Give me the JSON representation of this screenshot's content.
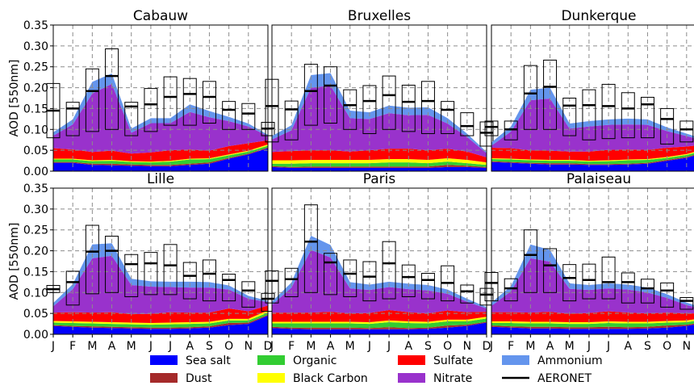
{
  "chart_data": {
    "type": "area",
    "layout": "2x3 grid of stacked area panels with AERONET box overlays",
    "ylabel": "AOD [550nm]",
    "ylim": [
      0,
      0.35
    ],
    "yticks": [
      0.0,
      0.05,
      0.1,
      0.15,
      0.2,
      0.25,
      0.3,
      0.35
    ],
    "months": [
      "J",
      "F",
      "M",
      "A",
      "M",
      "J",
      "J",
      "A",
      "S",
      "O",
      "N",
      "D"
    ],
    "grid": true,
    "legend_position": "bottom",
    "components": [
      {
        "name": "Sea salt",
        "color": "#0000ff"
      },
      {
        "name": "Dust",
        "color": "#a52a2a"
      },
      {
        "name": "Organic",
        "color": "#32cd32"
      },
      {
        "name": "Black Carbon",
        "color": "#ffff00"
      },
      {
        "name": "Sulfate",
        "color": "#ff0000"
      },
      {
        "name": "Nitrate",
        "color": "#9932cc"
      },
      {
        "name": "Ammonium",
        "color": "#6495ed"
      },
      {
        "name": "AERONET",
        "color": "#000000",
        "marker": "line"
      }
    ],
    "panels": [
      {
        "title": "Cabauw",
        "stacks": {
          "Sea salt": [
            0.02,
            0.02,
            0.015,
            0.014,
            0.013,
            0.012,
            0.012,
            0.015,
            0.018,
            0.03,
            0.04,
            0.055
          ],
          "Dust": [
            0.002,
            0.002,
            0.003,
            0.004,
            0.003,
            0.003,
            0.003,
            0.003,
            0.003,
            0.002,
            0.002,
            0.002
          ],
          "Organic": [
            0.006,
            0.006,
            0.006,
            0.007,
            0.006,
            0.006,
            0.008,
            0.01,
            0.008,
            0.006,
            0.005,
            0.004
          ],
          "Black Carbon": [
            0.002,
            0.002,
            0.002,
            0.002,
            0.002,
            0.002,
            0.002,
            0.002,
            0.002,
            0.002,
            0.002,
            0.003
          ],
          "Sulfate": [
            0.025,
            0.022,
            0.02,
            0.022,
            0.018,
            0.022,
            0.025,
            0.022,
            0.018,
            0.02,
            0.018,
            0.01
          ],
          "Nitrate": [
            0.03,
            0.06,
            0.14,
            0.16,
            0.05,
            0.07,
            0.065,
            0.09,
            0.08,
            0.06,
            0.04,
            0.01
          ],
          "Ammonium": [
            0.008,
            0.012,
            0.028,
            0.025,
            0.01,
            0.012,
            0.012,
            0.018,
            0.015,
            0.01,
            0.007,
            0.003
          ]
        },
        "aeronet": {
          "median": [
            0.145,
            0.15,
            0.192,
            0.228,
            0.155,
            0.16,
            0.178,
            0.185,
            0.178,
            0.147,
            0.138,
            0.102
          ],
          "q_low": [
            0.08,
            0.085,
            0.095,
            0.1,
            0.085,
            0.095,
            0.11,
            0.11,
            0.115,
            0.1,
            0.1,
            0.085
          ],
          "q_high": [
            0.21,
            0.165,
            0.245,
            0.293,
            0.165,
            0.198,
            0.226,
            0.222,
            0.215,
            0.167,
            0.162,
            0.117
          ]
        }
      },
      {
        "title": "Bruxelles",
        "stacks": {
          "Sea salt": [
            0.01,
            0.008,
            0.008,
            0.008,
            0.008,
            0.008,
            0.008,
            0.008,
            0.008,
            0.01,
            0.01,
            0.008
          ],
          "Dust": [
            0.002,
            0.002,
            0.003,
            0.003,
            0.003,
            0.003,
            0.003,
            0.003,
            0.003,
            0.005,
            0.003,
            0.002
          ],
          "Organic": [
            0.006,
            0.008,
            0.008,
            0.008,
            0.008,
            0.008,
            0.01,
            0.01,
            0.008,
            0.008,
            0.006,
            0.005
          ],
          "Black Carbon": [
            0.008,
            0.008,
            0.008,
            0.008,
            0.008,
            0.008,
            0.008,
            0.008,
            0.008,
            0.008,
            0.008,
            0.006
          ],
          "Sulfate": [
            0.02,
            0.022,
            0.023,
            0.023,
            0.02,
            0.023,
            0.025,
            0.025,
            0.023,
            0.023,
            0.02,
            0.012
          ],
          "Nitrate": [
            0.03,
            0.05,
            0.15,
            0.155,
            0.08,
            0.075,
            0.085,
            0.08,
            0.085,
            0.06,
            0.035,
            0.01
          ],
          "Ammonium": [
            0.008,
            0.012,
            0.03,
            0.03,
            0.018,
            0.016,
            0.018,
            0.018,
            0.018,
            0.013,
            0.008,
            0.003
          ]
        },
        "aeronet": {
          "median": [
            0.156,
            0.148,
            0.192,
            0.205,
            0.158,
            0.168,
            0.182,
            0.166,
            0.168,
            0.147,
            0.108,
            0.092
          ],
          "q_low": [
            0.07,
            0.075,
            0.11,
            0.115,
            0.1,
            0.09,
            0.1,
            0.095,
            0.09,
            0.09,
            0.085,
            0.06
          ],
          "q_high": [
            0.22,
            0.168,
            0.256,
            0.25,
            0.195,
            0.205,
            0.228,
            0.206,
            0.215,
            0.167,
            0.14,
            0.118
          ]
        }
      },
      {
        "title": "Dunkerque",
        "stacks": {
          "Sea salt": [
            0.022,
            0.02,
            0.018,
            0.016,
            0.016,
            0.015,
            0.015,
            0.016,
            0.018,
            0.025,
            0.032,
            0.045
          ],
          "Dust": [
            0.002,
            0.002,
            0.002,
            0.003,
            0.003,
            0.002,
            0.002,
            0.002,
            0.002,
            0.002,
            0.002,
            0.002
          ],
          "Organic": [
            0.005,
            0.006,
            0.006,
            0.006,
            0.006,
            0.006,
            0.007,
            0.008,
            0.007,
            0.005,
            0.005,
            0.004
          ],
          "Black Carbon": [
            0.002,
            0.002,
            0.002,
            0.002,
            0.002,
            0.002,
            0.002,
            0.002,
            0.002,
            0.002,
            0.002,
            0.003
          ],
          "Sulfate": [
            0.025,
            0.025,
            0.022,
            0.022,
            0.02,
            0.022,
            0.025,
            0.024,
            0.022,
            0.022,
            0.018,
            0.01
          ],
          "Nitrate": [
            0.005,
            0.04,
            0.12,
            0.125,
            0.055,
            0.06,
            0.06,
            0.06,
            0.06,
            0.04,
            0.025,
            0.008
          ],
          "Ammonium": [
            0.008,
            0.012,
            0.025,
            0.026,
            0.012,
            0.013,
            0.013,
            0.014,
            0.013,
            0.009,
            0.006,
            0.003
          ]
        },
        "aeronet": {
          "median": [
            0.106,
            0.1,
            0.186,
            0.202,
            0.157,
            0.158,
            0.156,
            0.15,
            0.16,
            0.125,
            0.1,
            0.09
          ],
          "q_low": [
            0.085,
            0.075,
            0.1,
            0.1,
            0.085,
            0.075,
            0.078,
            0.08,
            0.08,
            0.065,
            0.07,
            0.06
          ],
          "q_high": [
            0.12,
            0.12,
            0.253,
            0.266,
            0.175,
            0.195,
            0.208,
            0.188,
            0.177,
            0.15,
            0.12,
            0.095
          ]
        }
      },
      {
        "title": "Lille",
        "stacks": {
          "Sea salt": [
            0.02,
            0.018,
            0.016,
            0.015,
            0.014,
            0.013,
            0.013,
            0.014,
            0.016,
            0.022,
            0.025,
            0.045
          ],
          "Dust": [
            0.002,
            0.002,
            0.003,
            0.003,
            0.003,
            0.003,
            0.003,
            0.003,
            0.003,
            0.005,
            0.003,
            0.002
          ],
          "Organic": [
            0.006,
            0.007,
            0.007,
            0.007,
            0.007,
            0.007,
            0.008,
            0.008,
            0.007,
            0.006,
            0.005,
            0.005
          ],
          "Black Carbon": [
            0.004,
            0.004,
            0.004,
            0.004,
            0.004,
            0.004,
            0.004,
            0.004,
            0.004,
            0.004,
            0.004,
            0.005
          ],
          "Sulfate": [
            0.02,
            0.022,
            0.022,
            0.024,
            0.02,
            0.022,
            0.025,
            0.023,
            0.022,
            0.025,
            0.018,
            0.012
          ],
          "Nitrate": [
            0.015,
            0.055,
            0.13,
            0.135,
            0.07,
            0.065,
            0.06,
            0.06,
            0.06,
            0.045,
            0.03,
            0.008
          ],
          "Ammonium": [
            0.008,
            0.012,
            0.033,
            0.03,
            0.015,
            0.013,
            0.013,
            0.014,
            0.013,
            0.01,
            0.007,
            0.003
          ]
        },
        "aeronet": {
          "median": [
            0.108,
            0.125,
            0.198,
            0.2,
            0.168,
            0.17,
            0.165,
            0.14,
            0.145,
            0.13,
            0.105,
            0.085
          ],
          "q_low": [
            0.1,
            0.07,
            0.097,
            0.1,
            0.09,
            0.095,
            0.095,
            0.085,
            0.08,
            0.08,
            0.065,
            0.055
          ],
          "q_high": [
            0.117,
            0.151,
            0.261,
            0.235,
            0.191,
            0.196,
            0.215,
            0.172,
            0.178,
            0.144,
            0.126,
            0.098
          ]
        }
      },
      {
        "title": "Paris",
        "stacks": {
          "Sea salt": [
            0.015,
            0.013,
            0.012,
            0.012,
            0.012,
            0.012,
            0.012,
            0.012,
            0.013,
            0.016,
            0.02,
            0.028
          ],
          "Dust": [
            0.003,
            0.003,
            0.004,
            0.004,
            0.004,
            0.003,
            0.005,
            0.003,
            0.003,
            0.005,
            0.003,
            0.002
          ],
          "Organic": [
            0.008,
            0.01,
            0.01,
            0.01,
            0.01,
            0.01,
            0.012,
            0.012,
            0.01,
            0.01,
            0.008,
            0.008
          ],
          "Black Carbon": [
            0.004,
            0.004,
            0.004,
            0.004,
            0.004,
            0.004,
            0.004,
            0.004,
            0.004,
            0.004,
            0.004,
            0.004
          ],
          "Sulfate": [
            0.022,
            0.022,
            0.022,
            0.024,
            0.02,
            0.022,
            0.025,
            0.022,
            0.02,
            0.022,
            0.018,
            0.012
          ],
          "Nitrate": [
            0.018,
            0.06,
            0.15,
            0.13,
            0.06,
            0.055,
            0.055,
            0.055,
            0.055,
            0.04,
            0.025,
            0.008
          ],
          "Ammonium": [
            0.008,
            0.012,
            0.034,
            0.03,
            0.015,
            0.013,
            0.013,
            0.013,
            0.013,
            0.01,
            0.007,
            0.003
          ]
        },
        "aeronet": {
          "median": [
            0.128,
            0.132,
            0.222,
            0.172,
            0.145,
            0.138,
            0.17,
            0.137,
            0.13,
            0.123,
            0.103,
            0.095
          ],
          "q_low": [
            0.075,
            0.09,
            0.1,
            0.095,
            0.09,
            0.08,
            0.085,
            0.09,
            0.085,
            0.08,
            0.075,
            0.07
          ],
          "q_high": [
            0.152,
            0.158,
            0.31,
            0.194,
            0.178,
            0.174,
            0.222,
            0.166,
            0.146,
            0.164,
            0.118,
            0.11
          ]
        }
      },
      {
        "title": "Palaiseau",
        "stacks": {
          "Sea salt": [
            0.018,
            0.016,
            0.014,
            0.014,
            0.013,
            0.013,
            0.013,
            0.013,
            0.014,
            0.016,
            0.02,
            0.028
          ],
          "Dust": [
            0.003,
            0.003,
            0.004,
            0.004,
            0.004,
            0.004,
            0.005,
            0.004,
            0.004,
            0.005,
            0.003,
            0.002
          ],
          "Organic": [
            0.006,
            0.008,
            0.008,
            0.008,
            0.008,
            0.008,
            0.009,
            0.009,
            0.008,
            0.007,
            0.006,
            0.006
          ],
          "Black Carbon": [
            0.004,
            0.004,
            0.004,
            0.004,
            0.004,
            0.004,
            0.004,
            0.004,
            0.004,
            0.004,
            0.004,
            0.004
          ],
          "Sulfate": [
            0.022,
            0.022,
            0.022,
            0.024,
            0.02,
            0.022,
            0.024,
            0.022,
            0.02,
            0.02,
            0.017,
            0.01
          ],
          "Nitrate": [
            0.015,
            0.05,
            0.13,
            0.12,
            0.06,
            0.055,
            0.055,
            0.055,
            0.05,
            0.035,
            0.02,
            0.008
          ],
          "Ammonium": [
            0.008,
            0.012,
            0.033,
            0.028,
            0.013,
            0.012,
            0.012,
            0.012,
            0.012,
            0.009,
            0.006,
            0.003
          ]
        },
        "aeronet": {
          "median": [
            0.123,
            0.11,
            0.19,
            0.165,
            0.135,
            0.13,
            0.125,
            0.125,
            0.11,
            0.105,
            0.08,
            0.08
          ],
          "q_low": [
            0.08,
            0.08,
            0.1,
            0.1,
            0.08,
            0.085,
            0.085,
            0.075,
            0.075,
            0.065,
            0.06,
            0.05
          ],
          "q_high": [
            0.148,
            0.133,
            0.25,
            0.205,
            0.167,
            0.168,
            0.185,
            0.147,
            0.132,
            0.123,
            0.088,
            0.1
          ]
        }
      }
    ]
  }
}
